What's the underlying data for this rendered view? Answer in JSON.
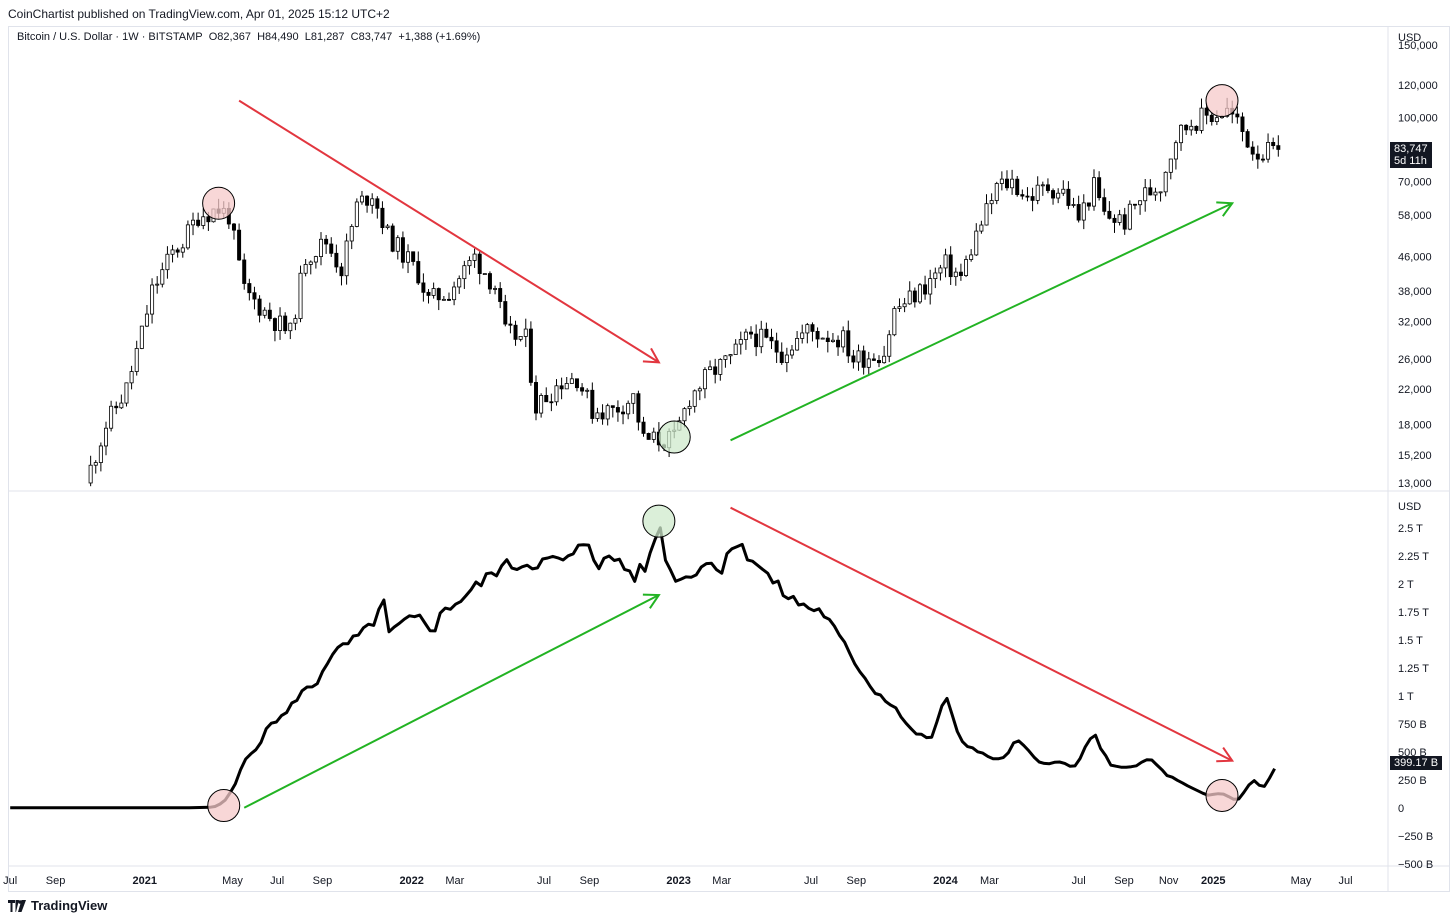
{
  "header": {
    "publisher_line": "CoinChartist published on TradingView.com, Apr 01, 2025 15:12 UTC+2"
  },
  "legend": {
    "symbol": "Bitcoin / U.S. Dollar · 1W · BITSTAMP",
    "open": "O82,367",
    "high": "H84,490",
    "low": "L81,287",
    "close": "C83,747",
    "change": "+1,388 (+1.69%)"
  },
  "footer": {
    "brand": "TradingView"
  },
  "price_badge": {
    "price": "83,747",
    "countdown": "5d 11h"
  },
  "lower_badge": {
    "value": "399.17 B"
  },
  "colors": {
    "bear_arrow": "#e2363f",
    "bull_arrow": "#22b323",
    "peak_circle": "#f6c9ca",
    "trough_circle": "#cfe9cc",
    "line": "#000000"
  },
  "chart_data": [
    {
      "type": "candlestick",
      "title": "",
      "axis_currency": "USD",
      "y_scale": "log",
      "ylim": [
        12500,
        165000
      ],
      "y_ticks": [
        13000,
        15200,
        18000,
        22000,
        26000,
        32000,
        38000,
        46000,
        58000,
        70000,
        100000,
        120000,
        150000
      ],
      "y_tick_labels": [
        "13,000",
        "15,200",
        "18,000",
        "22,000",
        "26,000",
        "32,000",
        "38,000",
        "46,000",
        "58,000",
        "70,000",
        "100,000",
        "120,000",
        "150,000"
      ],
      "last_price": 83747,
      "anchors": [
        [
          "2020-10-12",
          13000
        ],
        [
          "2020-11-09",
          18000
        ],
        [
          "2020-12-07",
          22000
        ],
        [
          "2020-12-28",
          30000
        ],
        [
          "2021-01-11",
          38000
        ],
        [
          "2021-02-08",
          47000
        ],
        [
          "2021-02-22",
          50000
        ],
        [
          "2021-03-15",
          58000
        ],
        [
          "2021-04-12",
          60000
        ],
        [
          "2021-04-26",
          58000
        ],
        [
          "2021-05-17",
          38000
        ],
        [
          "2021-06-21",
          33000
        ],
        [
          "2021-07-19",
          30000
        ],
        [
          "2021-08-09",
          46000
        ],
        [
          "2021-09-06",
          50000
        ],
        [
          "2021-09-27",
          43000
        ],
        [
          "2021-10-18",
          61000
        ],
        [
          "2021-11-08",
          66000
        ],
        [
          "2021-11-29",
          52000
        ],
        [
          "2022-01-10",
          42000
        ],
        [
          "2022-01-24",
          36000
        ],
        [
          "2022-02-21",
          38000
        ],
        [
          "2022-03-28",
          46000
        ],
        [
          "2022-04-25",
          39000
        ],
        [
          "2022-05-09",
          30000
        ],
        [
          "2022-06-06",
          29000
        ],
        [
          "2022-06-20",
          20000
        ],
        [
          "2022-07-25",
          23000
        ],
        [
          "2022-08-15",
          23500
        ],
        [
          "2022-09-05",
          19500
        ],
        [
          "2022-10-03",
          19500
        ],
        [
          "2022-10-31",
          21000
        ],
        [
          "2022-11-14",
          16500
        ],
        [
          "2022-12-26",
          16600
        ],
        [
          "2023-01-16",
          21000
        ],
        [
          "2023-02-13",
          24000
        ],
        [
          "2023-03-13",
          26000
        ],
        [
          "2023-04-10",
          30000
        ],
        [
          "2023-05-22",
          27000
        ],
        [
          "2023-06-26",
          30500
        ],
        [
          "2023-08-14",
          29000
        ],
        [
          "2023-08-28",
          26000
        ],
        [
          "2023-10-09",
          27000
        ],
        [
          "2023-10-23",
          34000
        ],
        [
          "2023-11-27",
          38000
        ],
        [
          "2024-01-01",
          44000
        ],
        [
          "2024-01-22",
          41000
        ],
        [
          "2024-02-12",
          52000
        ],
        [
          "2024-03-04",
          63000
        ],
        [
          "2024-03-11",
          68000
        ],
        [
          "2024-04-01",
          70000
        ],
        [
          "2024-04-22",
          64000
        ],
        [
          "2024-05-20",
          68000
        ],
        [
          "2024-06-10",
          66000
        ],
        [
          "2024-07-01",
          57000
        ],
        [
          "2024-07-22",
          68000
        ],
        [
          "2024-08-05",
          58000
        ],
        [
          "2024-09-02",
          56000
        ],
        [
          "2024-09-23",
          64000
        ],
        [
          "2024-10-21",
          69000
        ],
        [
          "2024-11-11",
          90000
        ],
        [
          "2024-12-02",
          98000
        ],
        [
          "2024-12-16",
          100000
        ],
        [
          "2025-01-20",
          104000
        ],
        [
          "2025-02-03",
          97000
        ],
        [
          "2025-02-24",
          84000
        ],
        [
          "2025-03-10",
          82000
        ],
        [
          "2025-03-31",
          83747
        ]
      ]
    },
    {
      "type": "line",
      "title": "",
      "axis_currency": "USD",
      "ylim": [
        -520,
        2820
      ],
      "y_unit": "B",
      "y_ticks": [
        -500,
        -250,
        0,
        250,
        500,
        750,
        1000,
        1250,
        1500,
        1750,
        2000,
        2250,
        2500
      ],
      "y_tick_labels": [
        "−500 B",
        "−250 B",
        "0",
        "250 B",
        "500 B",
        "750 B",
        "1 T",
        "1.25 T",
        "1.5 T",
        "1.75 T",
        "2 T",
        "2.25 T",
        "2.5 T"
      ],
      "last_value": 399.17,
      "points": [
        [
          "2020-07-01",
          0
        ],
        [
          "2021-03-01",
          0
        ],
        [
          "2021-04-05",
          5
        ],
        [
          "2021-04-19",
          50
        ],
        [
          "2021-05-03",
          180
        ],
        [
          "2021-05-17",
          420
        ],
        [
          "2021-06-07",
          570
        ],
        [
          "2021-06-21",
          750
        ],
        [
          "2021-07-12",
          830
        ],
        [
          "2021-08-02",
          1030
        ],
        [
          "2021-08-23",
          1100
        ],
        [
          "2021-09-06",
          1300
        ],
        [
          "2021-09-27",
          1430
        ],
        [
          "2021-10-25",
          1550
        ],
        [
          "2021-11-15",
          1700
        ],
        [
          "2021-11-22",
          1920
        ],
        [
          "2021-11-29",
          1540
        ],
        [
          "2021-12-20",
          1650
        ],
        [
          "2022-01-10",
          1700
        ],
        [
          "2022-01-31",
          1590
        ],
        [
          "2022-02-14",
          1770
        ],
        [
          "2022-03-07",
          1850
        ],
        [
          "2022-04-04",
          2000
        ],
        [
          "2022-05-02",
          2150
        ],
        [
          "2022-06-06",
          2180
        ],
        [
          "2022-07-04",
          2200
        ],
        [
          "2022-08-08",
          2220
        ],
        [
          "2022-08-29",
          2410
        ],
        [
          "2022-09-12",
          2180
        ],
        [
          "2022-10-10",
          2230
        ],
        [
          "2022-10-31",
          2060
        ],
        [
          "2022-11-21",
          2180
        ],
        [
          "2022-12-05",
          2560
        ],
        [
          "2022-12-19",
          2100
        ],
        [
          "2023-01-09",
          2040
        ],
        [
          "2023-02-06",
          2200
        ],
        [
          "2023-02-27",
          2120
        ],
        [
          "2023-03-13",
          2370
        ],
        [
          "2023-04-10",
          2250
        ],
        [
          "2023-05-08",
          2030
        ],
        [
          "2023-05-29",
          1890
        ],
        [
          "2023-06-19",
          1810
        ],
        [
          "2023-07-17",
          1750
        ],
        [
          "2023-08-07",
          1540
        ],
        [
          "2023-08-28",
          1320
        ],
        [
          "2023-09-25",
          1050
        ],
        [
          "2023-10-23",
          910
        ],
        [
          "2023-11-13",
          700
        ],
        [
          "2023-12-11",
          600
        ],
        [
          "2024-01-01",
          990
        ],
        [
          "2024-01-22",
          600
        ],
        [
          "2024-02-19",
          480
        ],
        [
          "2024-03-18",
          420
        ],
        [
          "2024-04-08",
          610
        ],
        [
          "2024-05-06",
          410
        ],
        [
          "2024-06-10",
          400
        ],
        [
          "2024-06-24",
          350
        ],
        [
          "2024-07-22",
          660
        ],
        [
          "2024-08-12",
          390
        ],
        [
          "2024-09-09",
          350
        ],
        [
          "2024-10-07",
          440
        ],
        [
          "2024-10-28",
          300
        ],
        [
          "2024-11-25",
          200
        ],
        [
          "2024-12-23",
          110
        ],
        [
          "2025-01-13",
          130
        ],
        [
          "2025-02-03",
          60
        ],
        [
          "2025-02-24",
          250
        ],
        [
          "2025-03-10",
          170
        ],
        [
          "2025-03-31",
          399
        ]
      ]
    }
  ],
  "x_axis": {
    "ticks": [
      {
        "label": "Jul",
        "date": "2020-07-01",
        "bold": false
      },
      {
        "label": "Sep",
        "date": "2020-09-01",
        "bold": false
      },
      {
        "label": "2021",
        "date": "2021-01-01",
        "bold": true
      },
      {
        "label": "May",
        "date": "2021-05-01",
        "bold": false
      },
      {
        "label": "Jul",
        "date": "2021-07-01",
        "bold": false
      },
      {
        "label": "Sep",
        "date": "2021-09-01",
        "bold": false
      },
      {
        "label": "2022",
        "date": "2022-01-01",
        "bold": true
      },
      {
        "label": "Mar",
        "date": "2022-03-01",
        "bold": false
      },
      {
        "label": "Jul",
        "date": "2022-07-01",
        "bold": false
      },
      {
        "label": "Sep",
        "date": "2022-09-01",
        "bold": false
      },
      {
        "label": "2023",
        "date": "2023-01-01",
        "bold": true
      },
      {
        "label": "Mar",
        "date": "2023-03-01",
        "bold": false
      },
      {
        "label": "Jul",
        "date": "2023-07-01",
        "bold": false
      },
      {
        "label": "Sep",
        "date": "2023-09-01",
        "bold": false
      },
      {
        "label": "2024",
        "date": "2024-01-01",
        "bold": true
      },
      {
        "label": "Mar",
        "date": "2024-03-01",
        "bold": false
      },
      {
        "label": "Jul",
        "date": "2024-07-01",
        "bold": false
      },
      {
        "label": "Sep",
        "date": "2024-09-01",
        "bold": false
      },
      {
        "label": "Nov",
        "date": "2024-11-01",
        "bold": false
      },
      {
        "label": "2025",
        "date": "2025-01-01",
        "bold": true
      },
      {
        "label": "May",
        "date": "2025-05-01",
        "bold": false
      },
      {
        "label": "Jul",
        "date": "2025-07-01",
        "bold": false
      }
    ]
  },
  "annotations": {
    "arrows": [
      {
        "panel": 0,
        "color": "bear",
        "from": [
          "2021-05-10",
          110000
        ],
        "to": [
          "2022-12-05",
          25500
        ]
      },
      {
        "panel": 0,
        "color": "bull",
        "from": [
          "2023-03-13",
          16500
        ],
        "to": [
          "2025-01-27",
          62000
        ]
      },
      {
        "panel": 1,
        "color": "bull",
        "from": [
          "2021-05-17",
          0
        ],
        "to": [
          "2022-12-05",
          1900
        ]
      },
      {
        "panel": 1,
        "color": "bear",
        "from": [
          "2023-03-13",
          2680
        ],
        "to": [
          "2025-01-27",
          420
        ]
      }
    ],
    "circles": [
      {
        "panel": 0,
        "kind": "peak",
        "at": [
          "2021-04-12",
          62000
        ]
      },
      {
        "panel": 0,
        "kind": "trough",
        "at": [
          "2022-12-26",
          16800
        ]
      },
      {
        "panel": 0,
        "kind": "peak",
        "at": [
          "2025-01-13",
          110000
        ]
      },
      {
        "panel": 1,
        "kind": "trough",
        "at": [
          "2022-12-05",
          2560
        ]
      },
      {
        "panel": 1,
        "kind": "peak",
        "at": [
          "2021-04-19",
          20
        ]
      },
      {
        "panel": 1,
        "kind": "peak",
        "at": [
          "2025-01-13",
          110
        ]
      }
    ]
  }
}
